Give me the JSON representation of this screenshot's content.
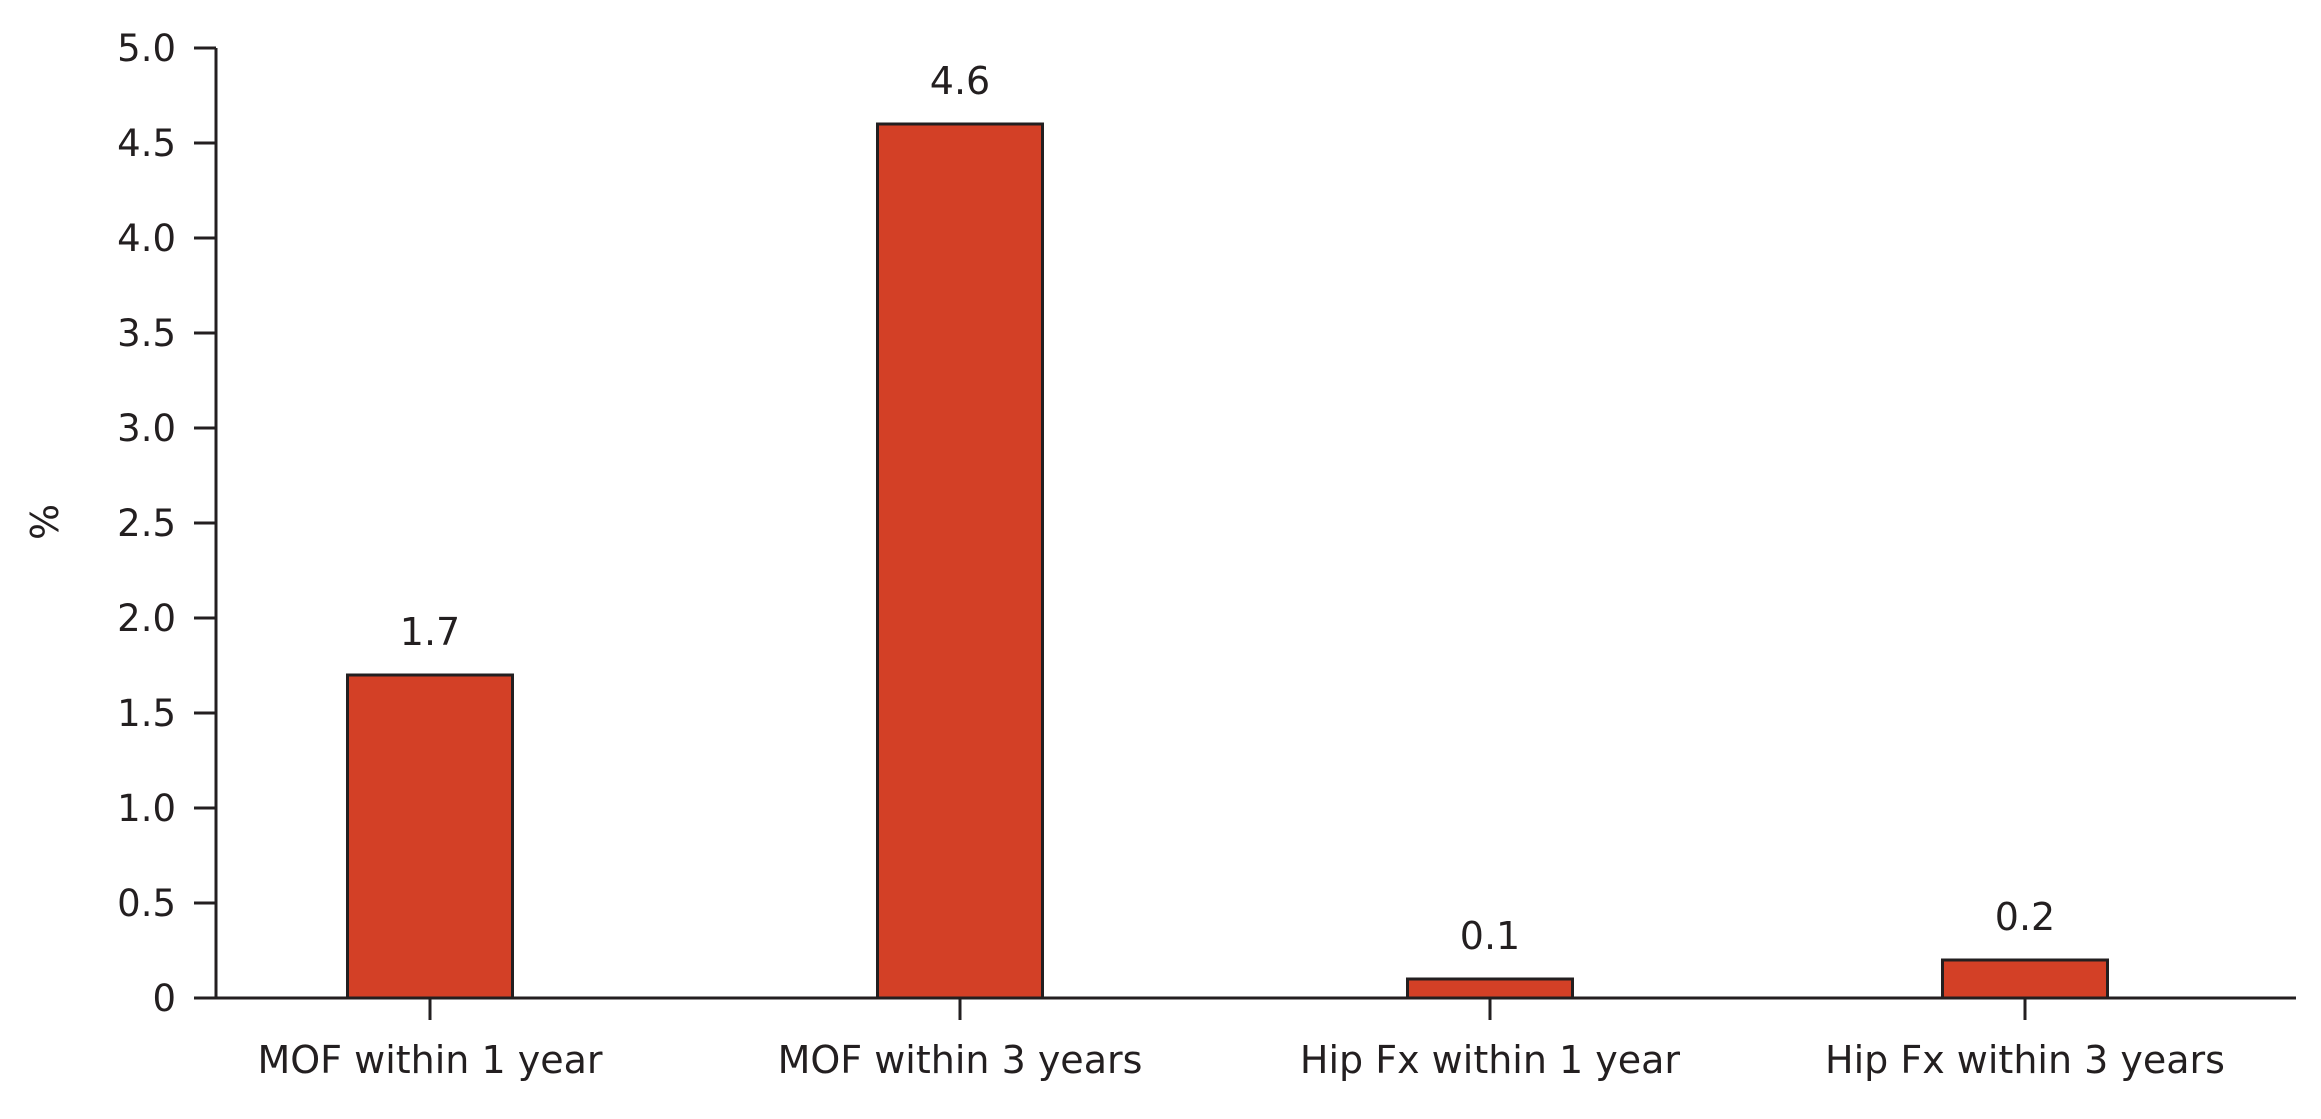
{
  "chart_data": {
    "type": "bar",
    "title": "",
    "xlabel": "",
    "ylabel": "%",
    "ylim": [
      0,
      5.0
    ],
    "yticks": [
      "0",
      "0.5",
      "1.0",
      "1.5",
      "2.0",
      "2.5",
      "3.0",
      "3.5",
      "4.0",
      "4.5",
      "5.0"
    ],
    "ytick_values": [
      0,
      0.5,
      1.0,
      1.5,
      2.0,
      2.5,
      3.0,
      3.5,
      4.0,
      4.5,
      5.0
    ],
    "categories": [
      "MOF within 1 year",
      "MOF within 3 years",
      "Hip Fx within 1 year",
      "Hip Fx within 3 years"
    ],
    "values": [
      1.7,
      4.6,
      0.1,
      0.2
    ],
    "data_labels": [
      "1.7",
      "4.6",
      "0.1",
      "0.2"
    ],
    "grid": false,
    "legend": "none",
    "colors": {
      "bar_fill": "#d34026",
      "bar_stroke": "#231f20",
      "axis": "#231f20",
      "text": "#231f20"
    }
  }
}
